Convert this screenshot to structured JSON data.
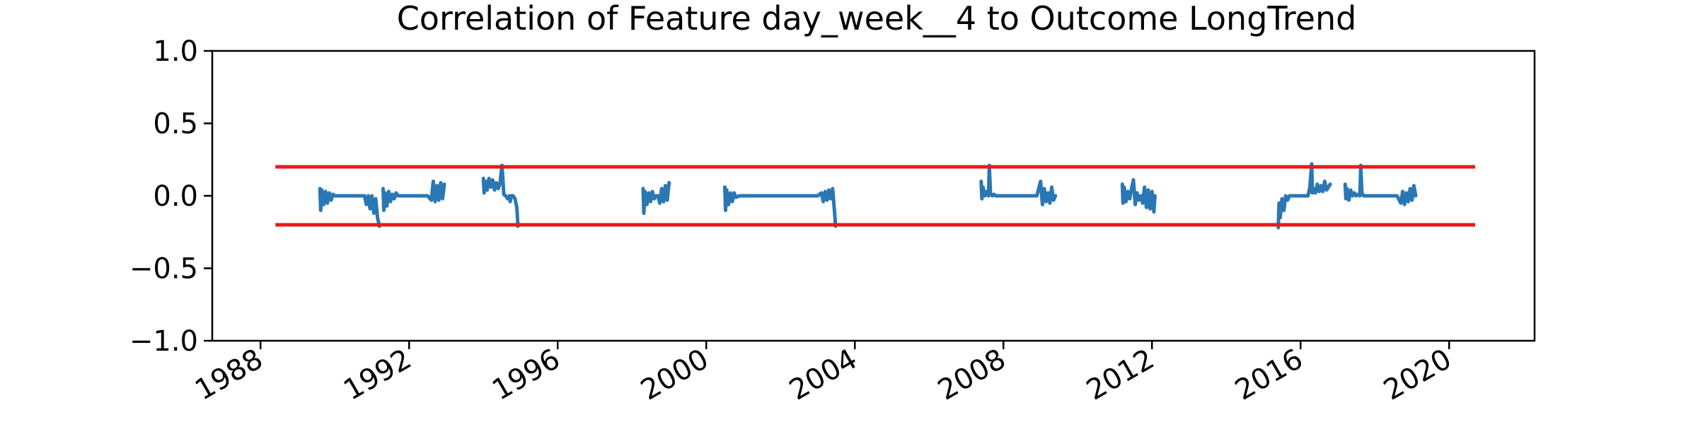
{
  "chart_data": {
    "type": "line",
    "title": "Correlation of Feature day_week__4 to Outcome LongTrend",
    "xlabel": "",
    "ylabel": "",
    "xlim": [
      1986.7,
      2022.3
    ],
    "ylim": [
      -1.0,
      1.0
    ],
    "x_ticks": [
      1988,
      1992,
      1996,
      2000,
      2004,
      2008,
      2012,
      2016,
      2020
    ],
    "x_tick_labels": [
      "1988",
      "1992",
      "1996",
      "2000",
      "2004",
      "2008",
      "2012",
      "2016",
      "2020"
    ],
    "y_ticks": [
      1.0,
      0.5,
      0.0,
      -0.5,
      -1.0
    ],
    "y_tick_labels": [
      "1.0",
      "0.5",
      "0.0",
      "−0.5",
      "−1.0"
    ],
    "grid": false,
    "threshold_lines": [
      {
        "y": 0.2,
        "x_start": 1988.4,
        "x_end": 2020.7,
        "color": "#e8191c"
      },
      {
        "y": -0.2,
        "x_start": 1988.4,
        "x_end": 2020.7,
        "color": "#e8191c"
      }
    ],
    "series": [
      {
        "color": "#2a77b4",
        "segments": [
          {
            "x": [
              1989.6,
              1989.62,
              1989.65,
              1989.7,
              1989.75,
              1989.8,
              1989.85,
              1989.9,
              1989.95,
              1990.0,
              1990.1,
              1990.3,
              1990.6,
              1990.8,
              1990.85,
              1990.9,
              1990.95,
              1991.0,
              1991.05,
              1991.1,
              1991.15,
              1991.2
            ],
            "y": [
              0.05,
              -0.1,
              0.04,
              -0.06,
              0.03,
              -0.05,
              0.02,
              -0.03,
              0.01,
              0.0,
              0.0,
              0.0,
              0.0,
              0.0,
              -0.06,
              0.0,
              -0.09,
              0.0,
              -0.12,
              -0.02,
              -0.15,
              -0.21
            ]
          },
          {
            "x": [
              1991.3,
              1991.32,
              1991.35,
              1991.4,
              1991.45,
              1991.5,
              1991.55,
              1991.6,
              1991.65,
              1991.7,
              1991.8,
              1992.0,
              1992.3,
              1992.5,
              1992.6,
              1992.65,
              1992.7,
              1992.75,
              1992.8,
              1992.85,
              1992.9,
              1992.95
            ],
            "y": [
              0.05,
              -0.1,
              0.02,
              -0.07,
              0.03,
              -0.04,
              0.01,
              -0.02,
              0.02,
              0.0,
              0.0,
              0.0,
              0.0,
              0.0,
              -0.03,
              0.1,
              -0.04,
              0.07,
              -0.03,
              0.09,
              -0.02,
              0.08
            ]
          },
          {
            "x": [
              1994.0,
              1994.02,
              1994.05,
              1994.1,
              1994.15,
              1994.2,
              1994.25,
              1994.3,
              1994.35,
              1994.4,
              1994.45,
              1994.5,
              1994.55,
              1994.6,
              1994.65,
              1994.7,
              1994.72,
              1994.75,
              1994.8,
              1994.85,
              1994.9,
              1994.93
            ],
            "y": [
              0.12,
              0.02,
              0.1,
              0.04,
              0.12,
              0.06,
              0.11,
              0.04,
              0.09,
              0.05,
              0.09,
              0.21,
              0.01,
              0.0,
              -0.02,
              0.0,
              -0.04,
              0.0,
              0.0,
              -0.02,
              -0.08,
              -0.21
            ]
          },
          {
            "x": [
              1998.3,
              1998.32,
              1998.35,
              1998.4,
              1998.45,
              1998.5,
              1998.55,
              1998.6,
              1998.65,
              1998.7,
              1998.75,
              1998.8,
              1998.85,
              1998.9,
              1998.95,
              1999.0
            ],
            "y": [
              0.05,
              -0.12,
              0.03,
              -0.06,
              0.02,
              -0.04,
              0.03,
              -0.02,
              0.0,
              0.0,
              -0.05,
              0.05,
              -0.04,
              0.07,
              -0.03,
              0.09
            ]
          },
          {
            "x": [
              2000.5,
              2000.52,
              2000.55,
              2000.6,
              2000.65,
              2000.7,
              2000.75,
              2000.8,
              2000.9,
              2001.2,
              2001.6,
              2002.0,
              2002.4,
              2002.8,
              2003.0,
              2003.1,
              2003.15,
              2003.2,
              2003.25,
              2003.3,
              2003.35,
              2003.4,
              2003.45,
              2003.48
            ],
            "y": [
              0.06,
              -0.1,
              0.04,
              -0.06,
              0.02,
              -0.04,
              0.02,
              -0.01,
              0.0,
              0.0,
              0.0,
              0.0,
              0.0,
              0.0,
              0.0,
              0.02,
              -0.04,
              0.03,
              -0.03,
              0.04,
              -0.02,
              0.05,
              -0.1,
              -0.21
            ]
          },
          {
            "x": [
              2007.4,
              2007.42,
              2007.45,
              2007.5,
              2007.55,
              2007.6,
              2007.62,
              2007.65,
              2007.7,
              2007.75,
              2007.8,
              2007.9,
              2008.2,
              2008.6,
              2008.9,
              2009.0,
              2009.05,
              2009.1,
              2009.15,
              2009.2,
              2009.25,
              2009.3,
              2009.35,
              2009.4
            ],
            "y": [
              0.1,
              -0.02,
              0.06,
              0.0,
              0.03,
              0.0,
              0.21,
              0.02,
              0.0,
              0.01,
              0.0,
              0.0,
              0.0,
              0.0,
              0.0,
              0.1,
              -0.06,
              0.05,
              -0.04,
              0.02,
              -0.05,
              0.06,
              -0.03,
              0.0
            ]
          },
          {
            "x": [
              2011.2,
              2011.22,
              2011.25,
              2011.3,
              2011.35,
              2011.4,
              2011.45,
              2011.5,
              2011.55,
              2011.6,
              2011.65,
              2011.7,
              2011.75,
              2011.8,
              2011.85,
              2011.9,
              2011.95,
              2012.0,
              2012.05,
              2012.08
            ],
            "y": [
              0.08,
              -0.05,
              0.06,
              -0.04,
              0.03,
              -0.02,
              0.05,
              0.11,
              -0.06,
              0.02,
              -0.03,
              0.0,
              -0.05,
              0.06,
              -0.08,
              0.04,
              -0.09,
              0.03,
              -0.11,
              0.0
            ]
          },
          {
            "x": [
              2015.4,
              2015.42,
              2015.45,
              2015.5,
              2015.55,
              2015.6,
              2015.65,
              2015.7,
              2015.8,
              2016.0,
              2016.2,
              2016.25,
              2016.3,
              2016.32,
              2016.35,
              2016.4,
              2016.45,
              2016.5,
              2016.55,
              2016.6,
              2016.65,
              2016.7,
              2016.75,
              2016.8
            ],
            "y": [
              -0.22,
              -0.05,
              -0.15,
              -0.02,
              -0.1,
              0.0,
              -0.03,
              0.0,
              0.0,
              0.0,
              0.0,
              0.06,
              0.22,
              0.02,
              0.05,
              0.02,
              0.08,
              0.03,
              0.07,
              0.03,
              0.1,
              0.04,
              0.06,
              0.08
            ]
          },
          {
            "x": [
              2017.2,
              2017.22,
              2017.25,
              2017.3,
              2017.35,
              2017.4,
              2017.45,
              2017.5,
              2017.55,
              2017.6,
              2017.62,
              2017.65,
              2017.7,
              2017.8,
              2018.0,
              2018.3,
              2018.6,
              2018.7,
              2018.75,
              2018.8,
              2018.85,
              2018.9,
              2018.95,
              2019.0,
              2019.05,
              2019.1
            ],
            "y": [
              0.08,
              -0.02,
              0.05,
              -0.03,
              0.04,
              0.0,
              0.02,
              0.0,
              0.01,
              0.0,
              0.21,
              0.02,
              0.0,
              0.0,
              0.0,
              0.0,
              0.0,
              -0.05,
              0.03,
              -0.06,
              0.02,
              -0.04,
              0.05,
              -0.03,
              0.07,
              0.0
            ]
          }
        ]
      }
    ]
  }
}
